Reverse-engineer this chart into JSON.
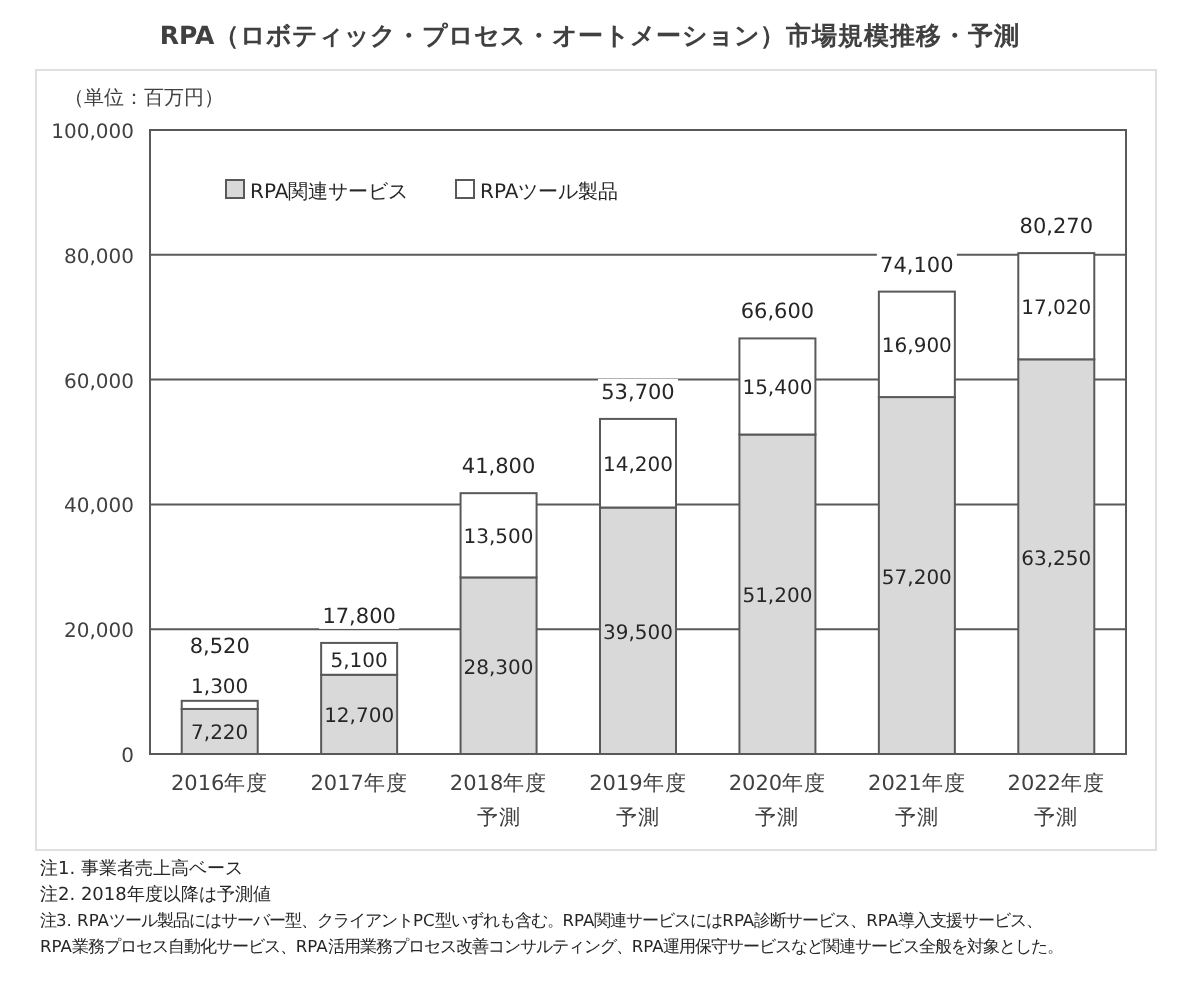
{
  "chart_data": {
    "type": "bar",
    "stacked": true,
    "title": "RPA（ロボティック・プロセス・オートメーション）市場規模推移・予測",
    "ylabel": "（単位：百万円）",
    "categories": [
      "2016年度",
      "2017年度",
      "2018年度予測",
      "2019年度予測",
      "2020年度予測",
      "2021年度予測",
      "2022年度予測"
    ],
    "series": [
      {
        "name": "RPA関連サービス",
        "color": "#d9d9d9",
        "values": [
          7220,
          12700,
          28300,
          39500,
          51200,
          57200,
          63250
        ],
        "value_labels": [
          "7,220",
          "12,700",
          "28,300",
          "39,500",
          "51,200",
          "57,200",
          "63,250"
        ]
      },
      {
        "name": "RPAツール製品",
        "color": "#ffffff",
        "values": [
          1300,
          5100,
          13500,
          14200,
          15400,
          16900,
          17020
        ],
        "value_labels": [
          "1,300",
          "5,100",
          "13,500",
          "14,200",
          "15,400",
          "16,900",
          "17,020"
        ]
      }
    ],
    "totals": [
      "8,520",
      "17,800",
      "41,800",
      "53,700",
      "66,600",
      "74,100",
      "80,270"
    ],
    "ylim": [
      0,
      100000
    ],
    "yticks": [
      {
        "value": 0,
        "label": "0"
      },
      {
        "value": 20000,
        "label": "20,000"
      },
      {
        "value": 40000,
        "label": "40,000"
      },
      {
        "value": 60000,
        "label": "60,000"
      },
      {
        "value": 80000,
        "label": "80,000"
      },
      {
        "value": 100000,
        "label": "100,000"
      }
    ],
    "grid": "y",
    "legend": "top left",
    "annotations": [
      "注1.  事業者売上高ベース",
      "注2.  2018年度以降は予測値",
      "注3.  RPAツール製品にはサーバー型、クライアントPC型いずれも含む。RPA関連サービスにはRPA診断サービス、RPA導入支援サービス、",
      "RPA業務プロセス自動化サービス、RPA活用業務プロセス改善コンサルティング、RPA運用保守サービスなど関連サービス全般を対象とした。"
    ]
  }
}
